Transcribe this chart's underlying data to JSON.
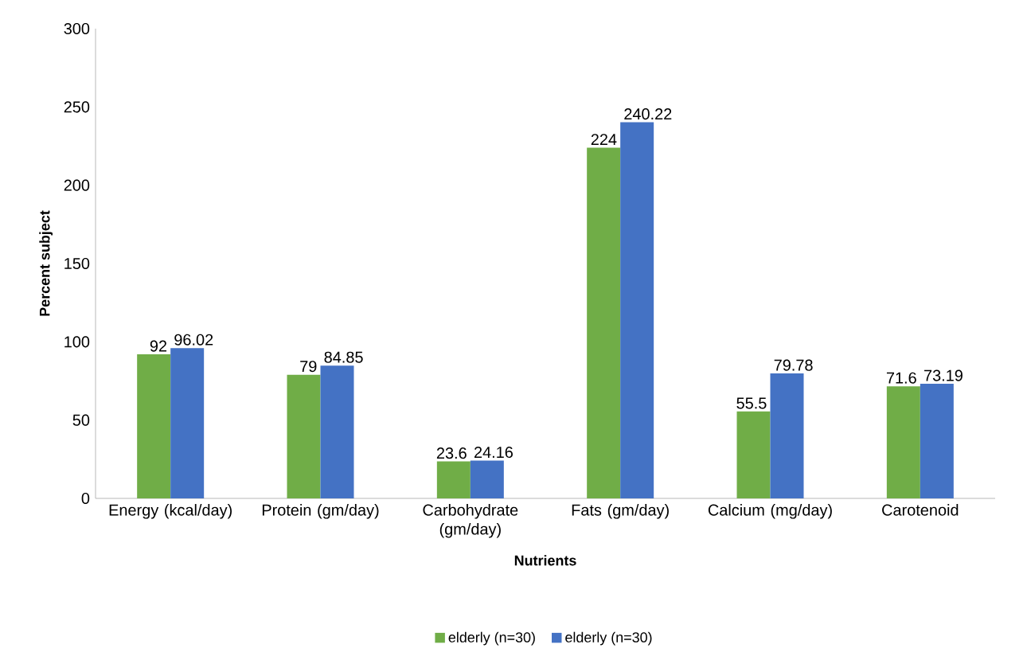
{
  "chart_data": {
    "type": "bar",
    "xlabel": "Nutrients",
    "ylabel": "Percent subject",
    "categories": [
      "Energy (kcal/day)",
      "Protein (gm/day)",
      "Carbohydrate (gm/day)",
      "Fats (gm/day)",
      "Calcium (mg/day)",
      "Carotenoid"
    ],
    "series": [
      {
        "name": "elderly (n=30)",
        "color": "#70ad47",
        "values": [
          92,
          79,
          23.6,
          224,
          55.5,
          71.6
        ]
      },
      {
        "name": "elderly (n=30)",
        "color": "#4472c4",
        "values": [
          96.02,
          84.85,
          24.16,
          240.22,
          79.78,
          73.19
        ]
      }
    ],
    "ylim": [
      0,
      300
    ],
    "yticks": [
      0,
      50,
      100,
      150,
      200,
      250,
      300
    ],
    "data_labels": true,
    "legend": "bottom"
  }
}
